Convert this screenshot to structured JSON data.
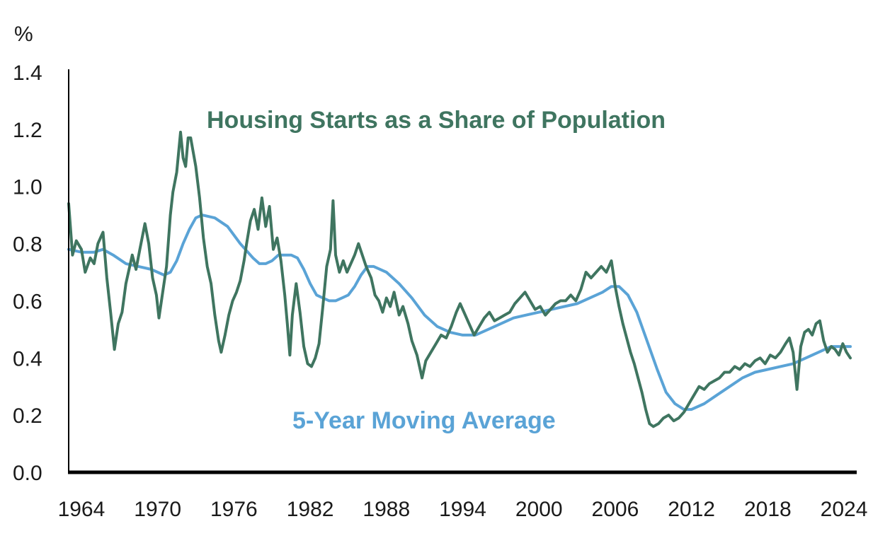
{
  "chart_data": {
    "type": "line",
    "unit_label": "%",
    "xlabel": "",
    "ylabel": "",
    "xlim": [
      1963,
      2025
    ],
    "ylim": [
      0,
      1.4
    ],
    "x_ticks": [
      1964,
      1970,
      1976,
      1982,
      1988,
      1994,
      2000,
      2006,
      2012,
      2018,
      2024
    ],
    "y_ticks": [
      "0.0",
      "0.2",
      "0.4",
      "0.6",
      "0.8",
      "1.0",
      "1.2",
      "1.4"
    ],
    "grid": false,
    "series": [
      {
        "name": "Housing Starts as a Share of Population",
        "color": "#3f7560",
        "points": [
          [
            1963.0,
            0.94
          ],
          [
            1963.3,
            0.76
          ],
          [
            1963.6,
            0.81
          ],
          [
            1964.0,
            0.78
          ],
          [
            1964.3,
            0.7
          ],
          [
            1964.7,
            0.75
          ],
          [
            1965.0,
            0.73
          ],
          [
            1965.3,
            0.8
          ],
          [
            1965.7,
            0.84
          ],
          [
            1966.0,
            0.68
          ],
          [
            1966.3,
            0.56
          ],
          [
            1966.6,
            0.43
          ],
          [
            1966.9,
            0.52
          ],
          [
            1967.2,
            0.56
          ],
          [
            1967.5,
            0.66
          ],
          [
            1967.8,
            0.72
          ],
          [
            1968.0,
            0.76
          ],
          [
            1968.3,
            0.71
          ],
          [
            1968.6,
            0.78
          ],
          [
            1969.0,
            0.87
          ],
          [
            1969.3,
            0.8
          ],
          [
            1969.6,
            0.68
          ],
          [
            1969.9,
            0.62
          ],
          [
            1970.1,
            0.54
          ],
          [
            1970.4,
            0.63
          ],
          [
            1970.7,
            0.72
          ],
          [
            1971.0,
            0.9
          ],
          [
            1971.2,
            0.98
          ],
          [
            1971.5,
            1.05
          ],
          [
            1971.8,
            1.19
          ],
          [
            1972.0,
            1.1
          ],
          [
            1972.2,
            1.07
          ],
          [
            1972.4,
            1.17
          ],
          [
            1972.6,
            1.17
          ],
          [
            1972.8,
            1.12
          ],
          [
            1973.0,
            1.07
          ],
          [
            1973.3,
            0.96
          ],
          [
            1973.6,
            0.82
          ],
          [
            1973.9,
            0.72
          ],
          [
            1974.2,
            0.66
          ],
          [
            1974.5,
            0.55
          ],
          [
            1974.8,
            0.46
          ],
          [
            1975.0,
            0.42
          ],
          [
            1975.3,
            0.48
          ],
          [
            1975.6,
            0.55
          ],
          [
            1975.9,
            0.6
          ],
          [
            1976.2,
            0.63
          ],
          [
            1976.5,
            0.67
          ],
          [
            1976.8,
            0.74
          ],
          [
            1977.0,
            0.8
          ],
          [
            1977.3,
            0.88
          ],
          [
            1977.6,
            0.92
          ],
          [
            1977.9,
            0.85
          ],
          [
            1978.2,
            0.96
          ],
          [
            1978.5,
            0.86
          ],
          [
            1978.8,
            0.93
          ],
          [
            1979.1,
            0.78
          ],
          [
            1979.4,
            0.82
          ],
          [
            1979.7,
            0.74
          ],
          [
            1980.0,
            0.62
          ],
          [
            1980.2,
            0.52
          ],
          [
            1980.4,
            0.41
          ],
          [
            1980.6,
            0.55
          ],
          [
            1980.9,
            0.66
          ],
          [
            1981.2,
            0.56
          ],
          [
            1981.5,
            0.44
          ],
          [
            1981.8,
            0.38
          ],
          [
            1982.1,
            0.37
          ],
          [
            1982.4,
            0.4
          ],
          [
            1982.7,
            0.45
          ],
          [
            1983.0,
            0.58
          ],
          [
            1983.3,
            0.72
          ],
          [
            1983.6,
            0.78
          ],
          [
            1983.8,
            0.95
          ],
          [
            1984.0,
            0.76
          ],
          [
            1984.3,
            0.7
          ],
          [
            1984.6,
            0.74
          ],
          [
            1984.9,
            0.7
          ],
          [
            1985.2,
            0.73
          ],
          [
            1985.5,
            0.76
          ],
          [
            1985.8,
            0.8
          ],
          [
            1986.1,
            0.76
          ],
          [
            1986.4,
            0.72
          ],
          [
            1986.8,
            0.68
          ],
          [
            1987.1,
            0.62
          ],
          [
            1987.4,
            0.6
          ],
          [
            1987.7,
            0.56
          ],
          [
            1988.0,
            0.61
          ],
          [
            1988.3,
            0.58
          ],
          [
            1988.6,
            0.63
          ],
          [
            1989.0,
            0.55
          ],
          [
            1989.3,
            0.58
          ],
          [
            1989.7,
            0.52
          ],
          [
            1990.0,
            0.46
          ],
          [
            1990.4,
            0.41
          ],
          [
            1990.8,
            0.33
          ],
          [
            1991.1,
            0.39
          ],
          [
            1991.5,
            0.42
          ],
          [
            1991.9,
            0.45
          ],
          [
            1992.3,
            0.48
          ],
          [
            1992.7,
            0.47
          ],
          [
            1993.1,
            0.51
          ],
          [
            1993.5,
            0.56
          ],
          [
            1993.8,
            0.59
          ],
          [
            1994.1,
            0.56
          ],
          [
            1994.5,
            0.52
          ],
          [
            1994.9,
            0.48
          ],
          [
            1995.3,
            0.51
          ],
          [
            1995.7,
            0.54
          ],
          [
            1996.1,
            0.56
          ],
          [
            1996.5,
            0.53
          ],
          [
            1996.9,
            0.54
          ],
          [
            1997.3,
            0.55
          ],
          [
            1997.7,
            0.56
          ],
          [
            1998.1,
            0.59
          ],
          [
            1998.5,
            0.61
          ],
          [
            1998.9,
            0.63
          ],
          [
            1999.3,
            0.6
          ],
          [
            1999.7,
            0.57
          ],
          [
            2000.1,
            0.58
          ],
          [
            2000.5,
            0.55
          ],
          [
            2000.9,
            0.57
          ],
          [
            2001.3,
            0.59
          ],
          [
            2001.7,
            0.6
          ],
          [
            2002.1,
            0.6
          ],
          [
            2002.5,
            0.62
          ],
          [
            2002.9,
            0.6
          ],
          [
            2003.3,
            0.64
          ],
          [
            2003.7,
            0.7
          ],
          [
            2004.1,
            0.68
          ],
          [
            2004.5,
            0.7
          ],
          [
            2004.9,
            0.72
          ],
          [
            2005.3,
            0.7
          ],
          [
            2005.7,
            0.74
          ],
          [
            2006.0,
            0.65
          ],
          [
            2006.3,
            0.58
          ],
          [
            2006.6,
            0.52
          ],
          [
            2006.9,
            0.47
          ],
          [
            2007.2,
            0.42
          ],
          [
            2007.5,
            0.38
          ],
          [
            2007.8,
            0.33
          ],
          [
            2008.1,
            0.28
          ],
          [
            2008.4,
            0.22
          ],
          [
            2008.7,
            0.17
          ],
          [
            2009.0,
            0.16
          ],
          [
            2009.4,
            0.17
          ],
          [
            2009.8,
            0.19
          ],
          [
            2010.2,
            0.2
          ],
          [
            2010.6,
            0.18
          ],
          [
            2011.0,
            0.19
          ],
          [
            2011.4,
            0.21
          ],
          [
            2011.8,
            0.24
          ],
          [
            2012.2,
            0.27
          ],
          [
            2012.6,
            0.3
          ],
          [
            2013.0,
            0.29
          ],
          [
            2013.4,
            0.31
          ],
          [
            2013.8,
            0.32
          ],
          [
            2014.2,
            0.33
          ],
          [
            2014.6,
            0.35
          ],
          [
            2015.0,
            0.35
          ],
          [
            2015.4,
            0.37
          ],
          [
            2015.8,
            0.36
          ],
          [
            2016.2,
            0.38
          ],
          [
            2016.6,
            0.37
          ],
          [
            2017.0,
            0.39
          ],
          [
            2017.4,
            0.4
          ],
          [
            2017.8,
            0.38
          ],
          [
            2018.2,
            0.41
          ],
          [
            2018.6,
            0.4
          ],
          [
            2019.0,
            0.42
          ],
          [
            2019.4,
            0.45
          ],
          [
            2019.7,
            0.47
          ],
          [
            2020.0,
            0.42
          ],
          [
            2020.3,
            0.29
          ],
          [
            2020.6,
            0.44
          ],
          [
            2020.9,
            0.49
          ],
          [
            2021.2,
            0.5
          ],
          [
            2021.5,
            0.48
          ],
          [
            2021.8,
            0.52
          ],
          [
            2022.1,
            0.53
          ],
          [
            2022.4,
            0.46
          ],
          [
            2022.7,
            0.42
          ],
          [
            2023.0,
            0.44
          ],
          [
            2023.3,
            0.43
          ],
          [
            2023.6,
            0.41
          ],
          [
            2023.9,
            0.45
          ],
          [
            2024.2,
            0.42
          ],
          [
            2024.5,
            0.4
          ]
        ]
      },
      {
        "name": "5-Year Moving Average",
        "color": "#5aa3d6",
        "points": [
          [
            1963.0,
            0.78
          ],
          [
            1964.0,
            0.77
          ],
          [
            1965.0,
            0.77
          ],
          [
            1965.7,
            0.78
          ],
          [
            1966.5,
            0.76
          ],
          [
            1967.5,
            0.73
          ],
          [
            1968.5,
            0.72
          ],
          [
            1969.5,
            0.71
          ],
          [
            1970.5,
            0.69
          ],
          [
            1971.0,
            0.7
          ],
          [
            1971.5,
            0.74
          ],
          [
            1972.0,
            0.8
          ],
          [
            1972.5,
            0.85
          ],
          [
            1973.0,
            0.89
          ],
          [
            1973.5,
            0.9
          ],
          [
            1974.5,
            0.89
          ],
          [
            1975.5,
            0.86
          ],
          [
            1976.5,
            0.8
          ],
          [
            1977.5,
            0.75
          ],
          [
            1978.0,
            0.73
          ],
          [
            1978.5,
            0.73
          ],
          [
            1979.0,
            0.74
          ],
          [
            1979.5,
            0.76
          ],
          [
            1980.5,
            0.76
          ],
          [
            1981.0,
            0.75
          ],
          [
            1981.5,
            0.71
          ],
          [
            1982.0,
            0.66
          ],
          [
            1982.5,
            0.62
          ],
          [
            1983.0,
            0.61
          ],
          [
            1983.5,
            0.6
          ],
          [
            1984.0,
            0.6
          ],
          [
            1984.5,
            0.61
          ],
          [
            1985.0,
            0.62
          ],
          [
            1985.5,
            0.65
          ],
          [
            1986.0,
            0.69
          ],
          [
            1986.5,
            0.72
          ],
          [
            1987.0,
            0.72
          ],
          [
            1988.0,
            0.7
          ],
          [
            1989.0,
            0.66
          ],
          [
            1990.0,
            0.61
          ],
          [
            1991.0,
            0.55
          ],
          [
            1992.0,
            0.51
          ],
          [
            1993.0,
            0.49
          ],
          [
            1994.0,
            0.48
          ],
          [
            1995.0,
            0.48
          ],
          [
            1996.0,
            0.5
          ],
          [
            1997.0,
            0.52
          ],
          [
            1998.0,
            0.54
          ],
          [
            1999.0,
            0.55
          ],
          [
            2000.0,
            0.56
          ],
          [
            2001.0,
            0.57
          ],
          [
            2002.0,
            0.58
          ],
          [
            2003.0,
            0.59
          ],
          [
            2004.0,
            0.61
          ],
          [
            2005.0,
            0.63
          ],
          [
            2005.7,
            0.65
          ],
          [
            2006.3,
            0.65
          ],
          [
            2007.0,
            0.62
          ],
          [
            2007.7,
            0.56
          ],
          [
            2008.5,
            0.46
          ],
          [
            2009.3,
            0.36
          ],
          [
            2010.0,
            0.28
          ],
          [
            2010.7,
            0.24
          ],
          [
            2011.4,
            0.22
          ],
          [
            2012.0,
            0.22
          ],
          [
            2013.0,
            0.24
          ],
          [
            2014.0,
            0.27
          ],
          [
            2015.0,
            0.3
          ],
          [
            2016.0,
            0.33
          ],
          [
            2017.0,
            0.35
          ],
          [
            2018.0,
            0.36
          ],
          [
            2019.0,
            0.37
          ],
          [
            2020.0,
            0.38
          ],
          [
            2021.0,
            0.4
          ],
          [
            2022.0,
            0.42
          ],
          [
            2023.0,
            0.44
          ],
          [
            2024.5,
            0.44
          ]
        ]
      }
    ]
  }
}
